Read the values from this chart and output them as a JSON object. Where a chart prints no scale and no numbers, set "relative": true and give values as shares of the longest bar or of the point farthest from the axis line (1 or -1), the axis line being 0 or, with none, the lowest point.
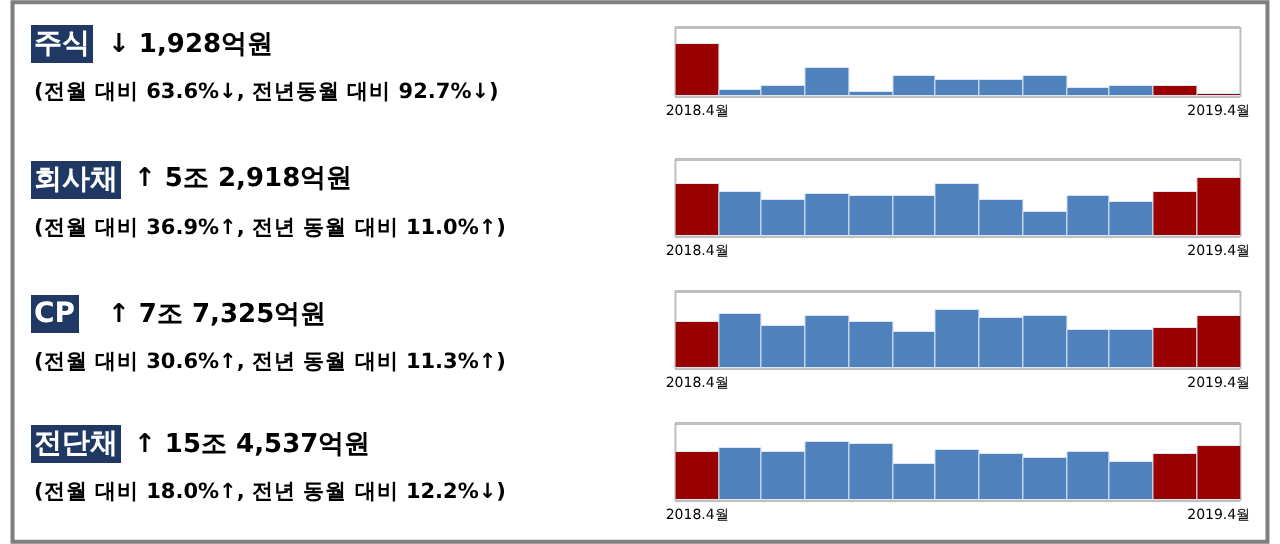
{
  "chart_data": [
    {
      "type": "bar",
      "annotations": [
        "주식",
        "↓ 1,928억원",
        "(전월 대비 63.6%↓, 전년동월 대비 92.7%↓)"
      ],
      "categories": [
        "2018.4월",
        null,
        null,
        null,
        null,
        null,
        null,
        null,
        null,
        null,
        null,
        null,
        "2019.4월"
      ],
      "relative": true,
      "values": [
        1,
        0.1,
        0.19,
        0.55,
        0.06,
        0.39,
        0.32,
        0.29,
        0.4,
        0.14,
        0.19,
        0.19,
        0.05
      ],
      "colors": [
        "#990000",
        "#4f81bd",
        "#4f81bd",
        "#4f81bd",
        "#4f81bd",
        "#4f81bd",
        "#4f81bd",
        "#4f81bd",
        "#4f81bd",
        "#4f81bd",
        "#4f81bd",
        "#990000",
        "#990000"
      ]
    },
    {
      "type": "bar",
      "annotations": [
        "회사채",
        "↑ 5조 2,918억원",
        "(전월 대비 36.9%↑, 전년 동월 대비 11.0%↑)"
      ],
      "categories": [
        "2018.4월",
        null,
        null,
        null,
        null,
        null,
        null,
        null,
        null,
        null,
        null,
        null,
        "2019.4월"
      ],
      "relative": true,
      "values": [
        0.9,
        0.74,
        0.61,
        0.72,
        0.67,
        0.68,
        0.9,
        0.61,
        0.42,
        0.67,
        0.58,
        0.74,
        1
      ],
      "colors": [
        "#990000",
        "#4f81bd",
        "#4f81bd",
        "#4f81bd",
        "#4f81bd",
        "#4f81bd",
        "#4f81bd",
        "#4f81bd",
        "#4f81bd",
        "#4f81bd",
        "#4f81bd",
        "#990000",
        "#990000"
      ]
    },
    {
      "type": "bar",
      "annotations": [
        "CP",
        "↑ 7조 7,325억원",
        "(전월 대비 30.6%↑, 전년 동월 대비 11.3%↑)"
      ],
      "categories": [
        "2018.4월",
        null,
        null,
        null,
        null,
        null,
        null,
        null,
        null,
        null,
        null,
        null,
        "2019.4월"
      ],
      "relative": true,
      "values": [
        0.8,
        0.91,
        0.72,
        0.88,
        0.79,
        0.63,
        1,
        0.86,
        0.89,
        0.66,
        0.66,
        0.68,
        0.89
      ],
      "colors": [
        "#990000",
        "#4f81bd",
        "#4f81bd",
        "#4f81bd",
        "#4f81bd",
        "#4f81bd",
        "#4f81bd",
        "#4f81bd",
        "#4f81bd",
        "#4f81bd",
        "#4f81bd",
        "#990000",
        "#990000"
      ]
    },
    {
      "type": "bar",
      "annotations": [
        "전단채",
        "↑ 15조 4,537억원",
        "(전월 대비 18.0%↑, 전년 동월 대비 12.2%↓)"
      ],
      "categories": [
        "2018.4월",
        null,
        null,
        null,
        null,
        null,
        null,
        null,
        null,
        null,
        null,
        null,
        "2019.4월"
      ],
      "relative": true,
      "values": [
        0.83,
        0.88,
        0.83,
        1,
        0.95,
        0.63,
        0.84,
        0.79,
        0.72,
        0.82,
        0.65,
        0.78,
        0.93
      ],
      "colors": [
        "#990000",
        "#4f81bd",
        "#4f81bd",
        "#4f81bd",
        "#4f81bd",
        "#4f81bd",
        "#4f81bd",
        "#4f81bd",
        "#4f81bd",
        "#4f81bd",
        "#4f81bd",
        "#990000",
        "#990000"
      ]
    }
  ]
}
